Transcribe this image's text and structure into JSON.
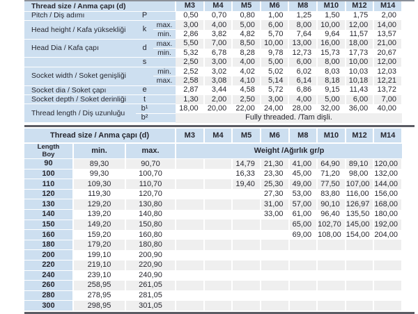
{
  "colors": {
    "header_blue": "#cddff0",
    "row_alt_gray": "#efefef",
    "divider_dark": "#5a5b63",
    "text": "#26262e"
  },
  "thread_sizes": [
    "M3",
    "M4",
    "M5",
    "M6",
    "M8",
    "M10",
    "M12",
    "M14"
  ],
  "table1": {
    "title": "Thread size / Anma çapı (d)",
    "rows": [
      {
        "label": "Pitch / Diş adımı",
        "symbol": "P",
        "sub": "",
        "values": [
          "0,50",
          "0,70",
          "0,80",
          "1,00",
          "1,25",
          "1,50",
          "1,75",
          "2,00"
        ]
      },
      {
        "label": "Head height / Kafa yüksekliği",
        "label_span": 2,
        "symbol": "k",
        "symbol_span": 2,
        "sub": "max.",
        "values": [
          "3,00",
          "4,00",
          "5,00",
          "6,00",
          "8,00",
          "10,00",
          "12,00",
          "14,00"
        ]
      },
      {
        "label": null,
        "symbol": null,
        "sub": "min.",
        "values": [
          "2,86",
          "3,82",
          "4,82",
          "5,70",
          "7,64",
          "9,64",
          "11,57",
          "13,57"
        ]
      },
      {
        "label": "Head Dia / Kafa çapı",
        "label_span": 2,
        "symbol": "d",
        "symbol_span": 2,
        "sub": "max.",
        "values": [
          "5,50",
          "7,00",
          "8,50",
          "10,00",
          "13,00",
          "16,00",
          "18,00",
          "21,00"
        ]
      },
      {
        "label": null,
        "symbol": null,
        "sub": "min.",
        "values": [
          "5,32",
          "6,78",
          "8,28",
          "9,78",
          "12,73",
          "15,73",
          "17,73",
          "20,67"
        ]
      },
      {
        "label": "",
        "symbol": "s",
        "sub": "",
        "values": [
          "2,50",
          "3,00",
          "4,00",
          "5,00",
          "6,00",
          "8,00",
          "10,00",
          "12,00"
        ]
      },
      {
        "label": "Socket width / Soket genişliği",
        "label_span": 2,
        "symbol": "",
        "symbol_span": 2,
        "sub": "min.",
        "values": [
          "2,52",
          "3,02",
          "4,02",
          "5,02",
          "6,02",
          "8,03",
          "10,03",
          "12,03"
        ]
      },
      {
        "label": null,
        "symbol": null,
        "sub": "max.",
        "values": [
          "2,58",
          "3,08",
          "4,10",
          "5,14",
          "6,14",
          "8,18",
          "10,18",
          "12,21"
        ]
      },
      {
        "label": "Socket dia / Soket çapı",
        "symbol": "e",
        "sub": "",
        "values": [
          "2,87",
          "3,44",
          "4,58",
          "5,72",
          "6,86",
          "9,15",
          "11,43",
          "13,72"
        ]
      },
      {
        "label": "Socket depth / Soket derinliği",
        "symbol": "t",
        "sub": "",
        "values": [
          "1,30",
          "2,00",
          "2,50",
          "3,00",
          "4,00",
          "5,00",
          "6,00",
          "7,00"
        ]
      },
      {
        "label": "Thread length / Diş uzunluğu",
        "label_span": 2,
        "symbol": "b¹",
        "sub": "",
        "values": [
          "18,00",
          "20,00",
          "22,00",
          "24,00",
          "28,00",
          "32,00",
          "36,00",
          "40,00"
        ]
      },
      {
        "label": null,
        "symbol": "b²",
        "sub": "",
        "note": "Fully threaded. /Tam dişli."
      }
    ]
  },
  "table2": {
    "title": "Thread size / Anma çapı (d)",
    "length_header_line1": "Length",
    "length_header_line2": "Boy",
    "min_header": "min.",
    "max_header": "max.",
    "weight_header": "Weight /Ağırlık gr/p",
    "rows": [
      {
        "length": "90",
        "min": "89,30",
        "max": "90,70",
        "weights": [
          "",
          "",
          "14,79",
          "21,30",
          "41,00",
          "64,90",
          "89,10",
          "120,00"
        ]
      },
      {
        "length": "100",
        "min": "99,30",
        "max": "100,70",
        "weights": [
          "",
          "",
          "16,33",
          "23,30",
          "45,00",
          "71,20",
          "98,00",
          "132,00"
        ]
      },
      {
        "length": "110",
        "min": "109,30",
        "max": "110,70",
        "weights": [
          "",
          "",
          "19,40",
          "25,30",
          "49,00",
          "77,50",
          "107,00",
          "144,00"
        ]
      },
      {
        "length": "120",
        "min": "119,30",
        "max": "120,70",
        "weights": [
          "",
          "",
          "",
          "27,30",
          "53,00",
          "83,80",
          "116,00",
          "156,00"
        ]
      },
      {
        "length": "130",
        "min": "129,20",
        "max": "130,80",
        "weights": [
          "",
          "",
          "",
          "31,00",
          "57,00",
          "90,10",
          "126,97",
          "168,00"
        ]
      },
      {
        "length": "140",
        "min": "139,20",
        "max": "140,80",
        "weights": [
          "",
          "",
          "",
          "33,00",
          "61,00",
          "96,40",
          "135,50",
          "180,00"
        ]
      },
      {
        "length": "150",
        "min": "149,20",
        "max": "150,80",
        "weights": [
          "",
          "",
          "",
          "",
          "65,00",
          "102,70",
          "145,00",
          "192,00"
        ]
      },
      {
        "length": "160",
        "min": "159,20",
        "max": "160,80",
        "weights": [
          "",
          "",
          "",
          "",
          "69,00",
          "108,00",
          "154,00",
          "204,00"
        ]
      },
      {
        "length": "180",
        "min": "179,20",
        "max": "180,80",
        "weights": [
          "",
          "",
          "",
          "",
          "",
          "",
          "",
          ""
        ]
      },
      {
        "length": "200",
        "min": "199,10",
        "max": "200,90",
        "weights": [
          "",
          "",
          "",
          "",
          "",
          "",
          "",
          ""
        ]
      },
      {
        "length": "220",
        "min": "219,10",
        "max": "220,90",
        "weights": [
          "",
          "",
          "",
          "",
          "",
          "",
          "",
          ""
        ]
      },
      {
        "length": "240",
        "min": "239,10",
        "max": "240,90",
        "weights": [
          "",
          "",
          "",
          "",
          "",
          "",
          "",
          ""
        ]
      },
      {
        "length": "260",
        "min": "258,95",
        "max": "261,05",
        "weights": [
          "",
          "",
          "",
          "",
          "",
          "",
          "",
          ""
        ]
      },
      {
        "length": "280",
        "min": "278,95",
        "max": "281,05",
        "weights": [
          "",
          "",
          "",
          "",
          "",
          "",
          "",
          ""
        ]
      },
      {
        "length": "300",
        "min": "298,95",
        "max": "301,05",
        "weights": [
          "",
          "",
          "",
          "",
          "",
          "",
          "",
          ""
        ]
      }
    ]
  }
}
